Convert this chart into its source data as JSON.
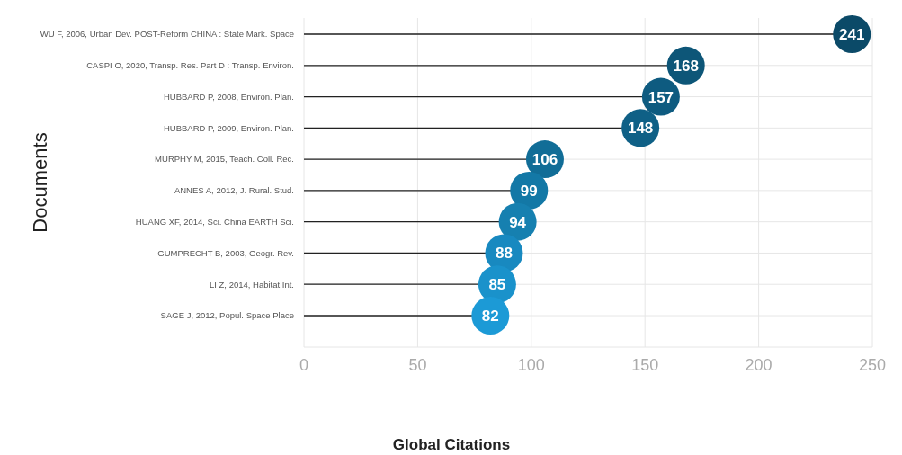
{
  "chart_data": {
    "type": "lollipop",
    "orientation": "horizontal",
    "xlabel": "Global Citations",
    "ylabel": "Documents",
    "categories": [
      "WU F, 2006, Urban Dev. POST-Reform CHINA : State Mark. Space",
      "CASPI O, 2020, Transp. Res. Part D : Transp. Environ.",
      "HUBBARD P, 2008, Environ. Plan.",
      "HUBBARD P, 2009, Environ. Plan.",
      "MURPHY M, 2015, Teach. Coll. Rec.",
      "ANNES A, 2012, J. Rural. Stud.",
      "HUANG XF, 2014, Sci. China EARTH Sci.",
      "GUMPRECHT B, 2003, Geogr. Rev.",
      "LI Z, 2014, Habitat Int.",
      "SAGE J, 2012, Popul. Space Place"
    ],
    "values": [
      241,
      168,
      157,
      148,
      106,
      99,
      94,
      88,
      85,
      82
    ],
    "colors": [
      "#0b4a68",
      "#0d5678",
      "#0e5b80",
      "#0f6086",
      "#116d97",
      "#1378a6",
      "#1680b0",
      "#1889c0",
      "#1a92cb",
      "#1c9ad6"
    ],
    "xlim": [
      0,
      250
    ],
    "xticks": [
      0,
      50,
      100,
      150,
      200,
      250
    ],
    "grid": true,
    "data_labels": true
  }
}
